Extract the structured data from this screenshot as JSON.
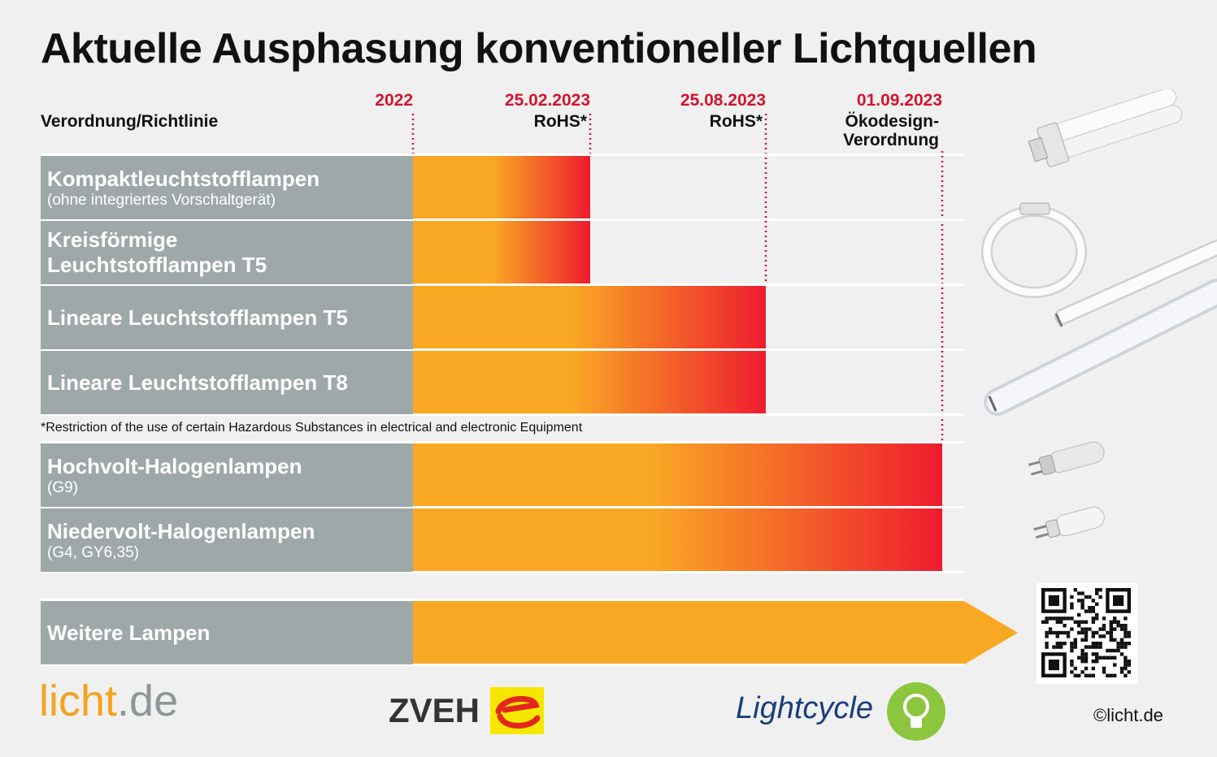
{
  "title": "Aktuelle Ausphasung konventioneller Lichtquellen",
  "column_header": "Verordnung/Richtlinie",
  "footnote": "*Restriction of the use of certain Hazardous Substances in electrical and electronic Equipment",
  "logos": {
    "licht_a": "licht",
    "licht_b": ".de",
    "zveh": "ZVEH",
    "lightcycle": "Lightcycle"
  },
  "copyright": "©licht.de",
  "colors": {
    "bar_start": "#f9a824",
    "bar_end": "#ee1c2e",
    "label_box": "#9fa8a8",
    "date_red": "#d2142d"
  },
  "chart_data": {
    "type": "bar",
    "orientation": "horizontal",
    "x_scale": "milestones",
    "milestones": [
      {
        "date": "2022",
        "label": ""
      },
      {
        "date": "25.02.2023",
        "label": "RoHS*"
      },
      {
        "date": "25.08.2023",
        "label": "RoHS*"
      },
      {
        "date": "01.09.2023",
        "label": "Ökodesign-\nVerordnung"
      }
    ],
    "rows": [
      {
        "name": "Kompaktleuchtstofflampen",
        "sub": "(ohne integriertes Vorschaltgerät)",
        "start": "2022",
        "end": "25.02.2023"
      },
      {
        "name": "Kreisförmige\nLeuchtstofflampen T5",
        "sub": "",
        "start": "2022",
        "end": "25.02.2023"
      },
      {
        "name": "Lineare Leuchtstofflampen T5",
        "sub": "",
        "start": "2022",
        "end": "25.08.2023"
      },
      {
        "name": "Lineare Leuchtstofflampen T8",
        "sub": "",
        "start": "2022",
        "end": "25.08.2023"
      },
      {
        "name": "Hochvolt-Halogenlampen",
        "sub": "(G9)",
        "start": "2022",
        "end": "01.09.2023"
      },
      {
        "name": "Niedervolt-Halogenlampen",
        "sub": "(G4, GY6,35)",
        "start": "2022",
        "end": "01.09.2023"
      },
      {
        "name": "Weitere Lampen",
        "sub": "",
        "start": "2022",
        "end": "ongoing"
      }
    ]
  }
}
